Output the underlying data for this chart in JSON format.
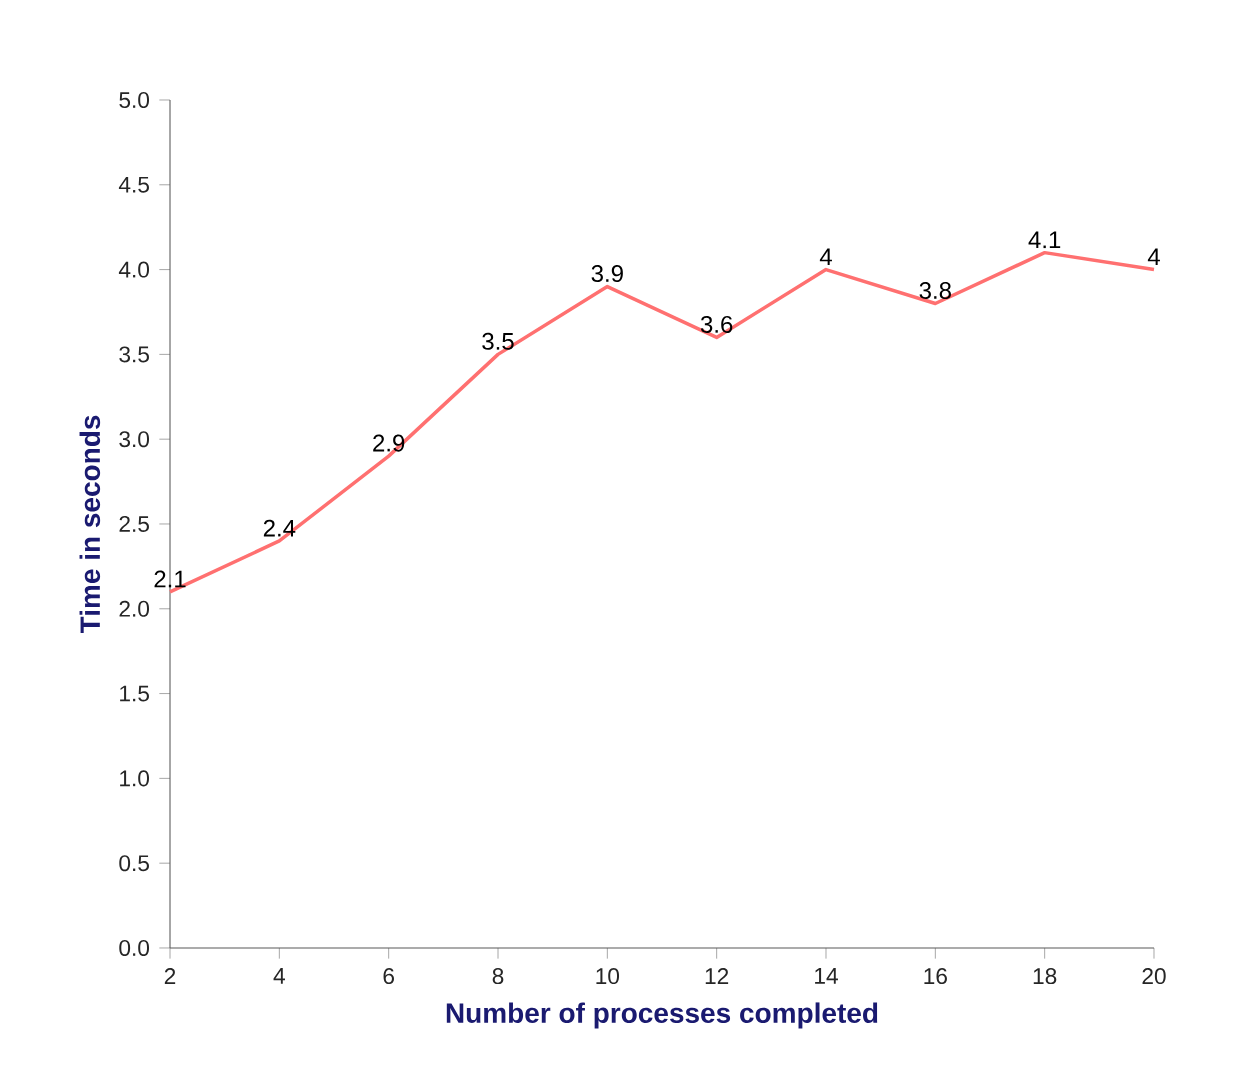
{
  "chart_data": {
    "type": "line",
    "xlabel": "Number of processes completed",
    "ylabel": "Time in seconds",
    "x": [
      2,
      4,
      6,
      8,
      10,
      12,
      14,
      16,
      18,
      20
    ],
    "values": [
      2.1,
      2.4,
      2.9,
      3.5,
      3.9,
      3.6,
      4,
      3.8,
      4.1,
      4
    ],
    "color": "#ff7070",
    "data_labels": true,
    "marker": "none",
    "line_style": "solid",
    "xlim": [
      2,
      20
    ],
    "xticks": [
      2,
      4,
      6,
      8,
      10,
      12,
      14,
      16,
      18,
      20
    ],
    "ylim": [
      0,
      5
    ],
    "yticks": [
      {
        "value": 0,
        "label": "0.0"
      },
      {
        "value": 0.5,
        "label": "0.5"
      },
      {
        "value": 1,
        "label": "1.0"
      },
      {
        "value": 1.5,
        "label": "1.5"
      },
      {
        "value": 2,
        "label": "2.0"
      },
      {
        "value": 2.5,
        "label": "2.5"
      },
      {
        "value": 3,
        "label": "3.0"
      },
      {
        "value": 3.5,
        "label": "3.5"
      },
      {
        "value": 4,
        "label": "4.0"
      },
      {
        "value": 4.5,
        "label": "4.5"
      },
      {
        "value": 5,
        "label": "5.0"
      }
    ]
  }
}
